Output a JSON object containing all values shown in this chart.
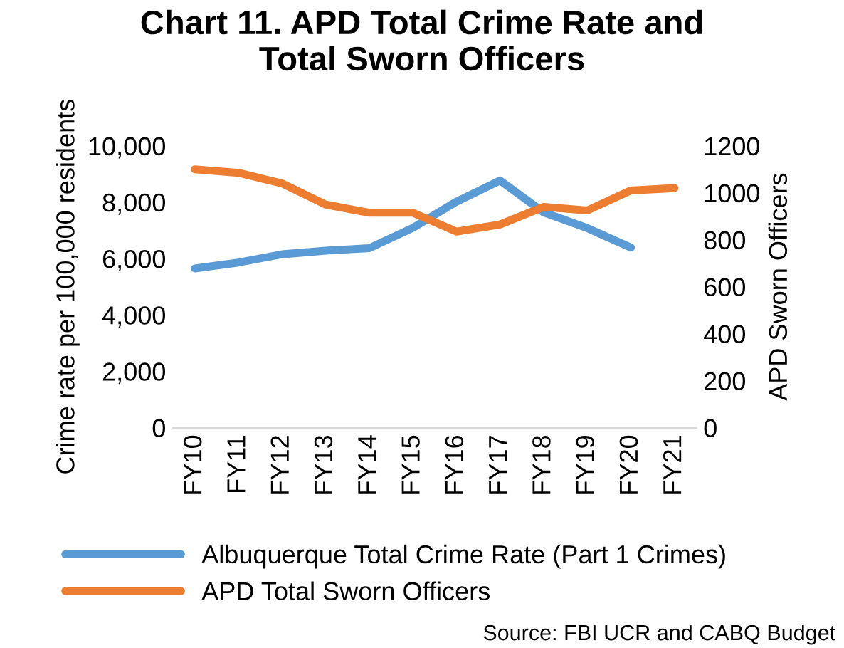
{
  "chart_data": {
    "type": "line",
    "title": "Chart 11. APD Total Crime Rate and\nTotal Sworn Officers",
    "ylabel": "Crime rate per 100,000 residents",
    "y2label": "APD Sworn Officers",
    "categories": [
      "FY10",
      "FY11",
      "FY12",
      "FY13",
      "FY14",
      "FY15",
      "FY16",
      "FY17",
      "FY18",
      "FY19",
      "FY20",
      "FY21"
    ],
    "series": [
      {
        "name": "Albuquerque Total Crime Rate (Part 1 Crimes)",
        "color": "#5b9bd5",
        "values": [
          5650,
          5860,
          6150,
          6280,
          6370,
          7090,
          8020,
          8770,
          7640,
          7080,
          6390,
          null
        ]
      },
      {
        "name": "APD Total Sworn Officers",
        "color": "#ed7d31",
        "axis": "y2",
        "values": [
          1100,
          1085,
          1040,
          950,
          915,
          915,
          835,
          865,
          940,
          925,
          1010,
          1020
        ]
      }
    ],
    "ylim": [
      0,
      10000
    ],
    "yticks": [
      {
        "value": 0,
        "label": "0"
      },
      {
        "value": 2000,
        "label": "2,000"
      },
      {
        "value": 4000,
        "label": "4,000"
      },
      {
        "value": 6000,
        "label": "6,000"
      },
      {
        "value": 8000,
        "label": "8,000"
      },
      {
        "value": 10000,
        "label": "10,000"
      }
    ],
    "y2lim": [
      0,
      1200
    ],
    "y2ticks": [
      0,
      200,
      400,
      600,
      800,
      1000,
      1200
    ],
    "grid": false,
    "legend": "bottom",
    "marker": "none",
    "line_style": "solid",
    "annotations": [
      "Source: FBI UCR and CABQ Budget"
    ]
  }
}
